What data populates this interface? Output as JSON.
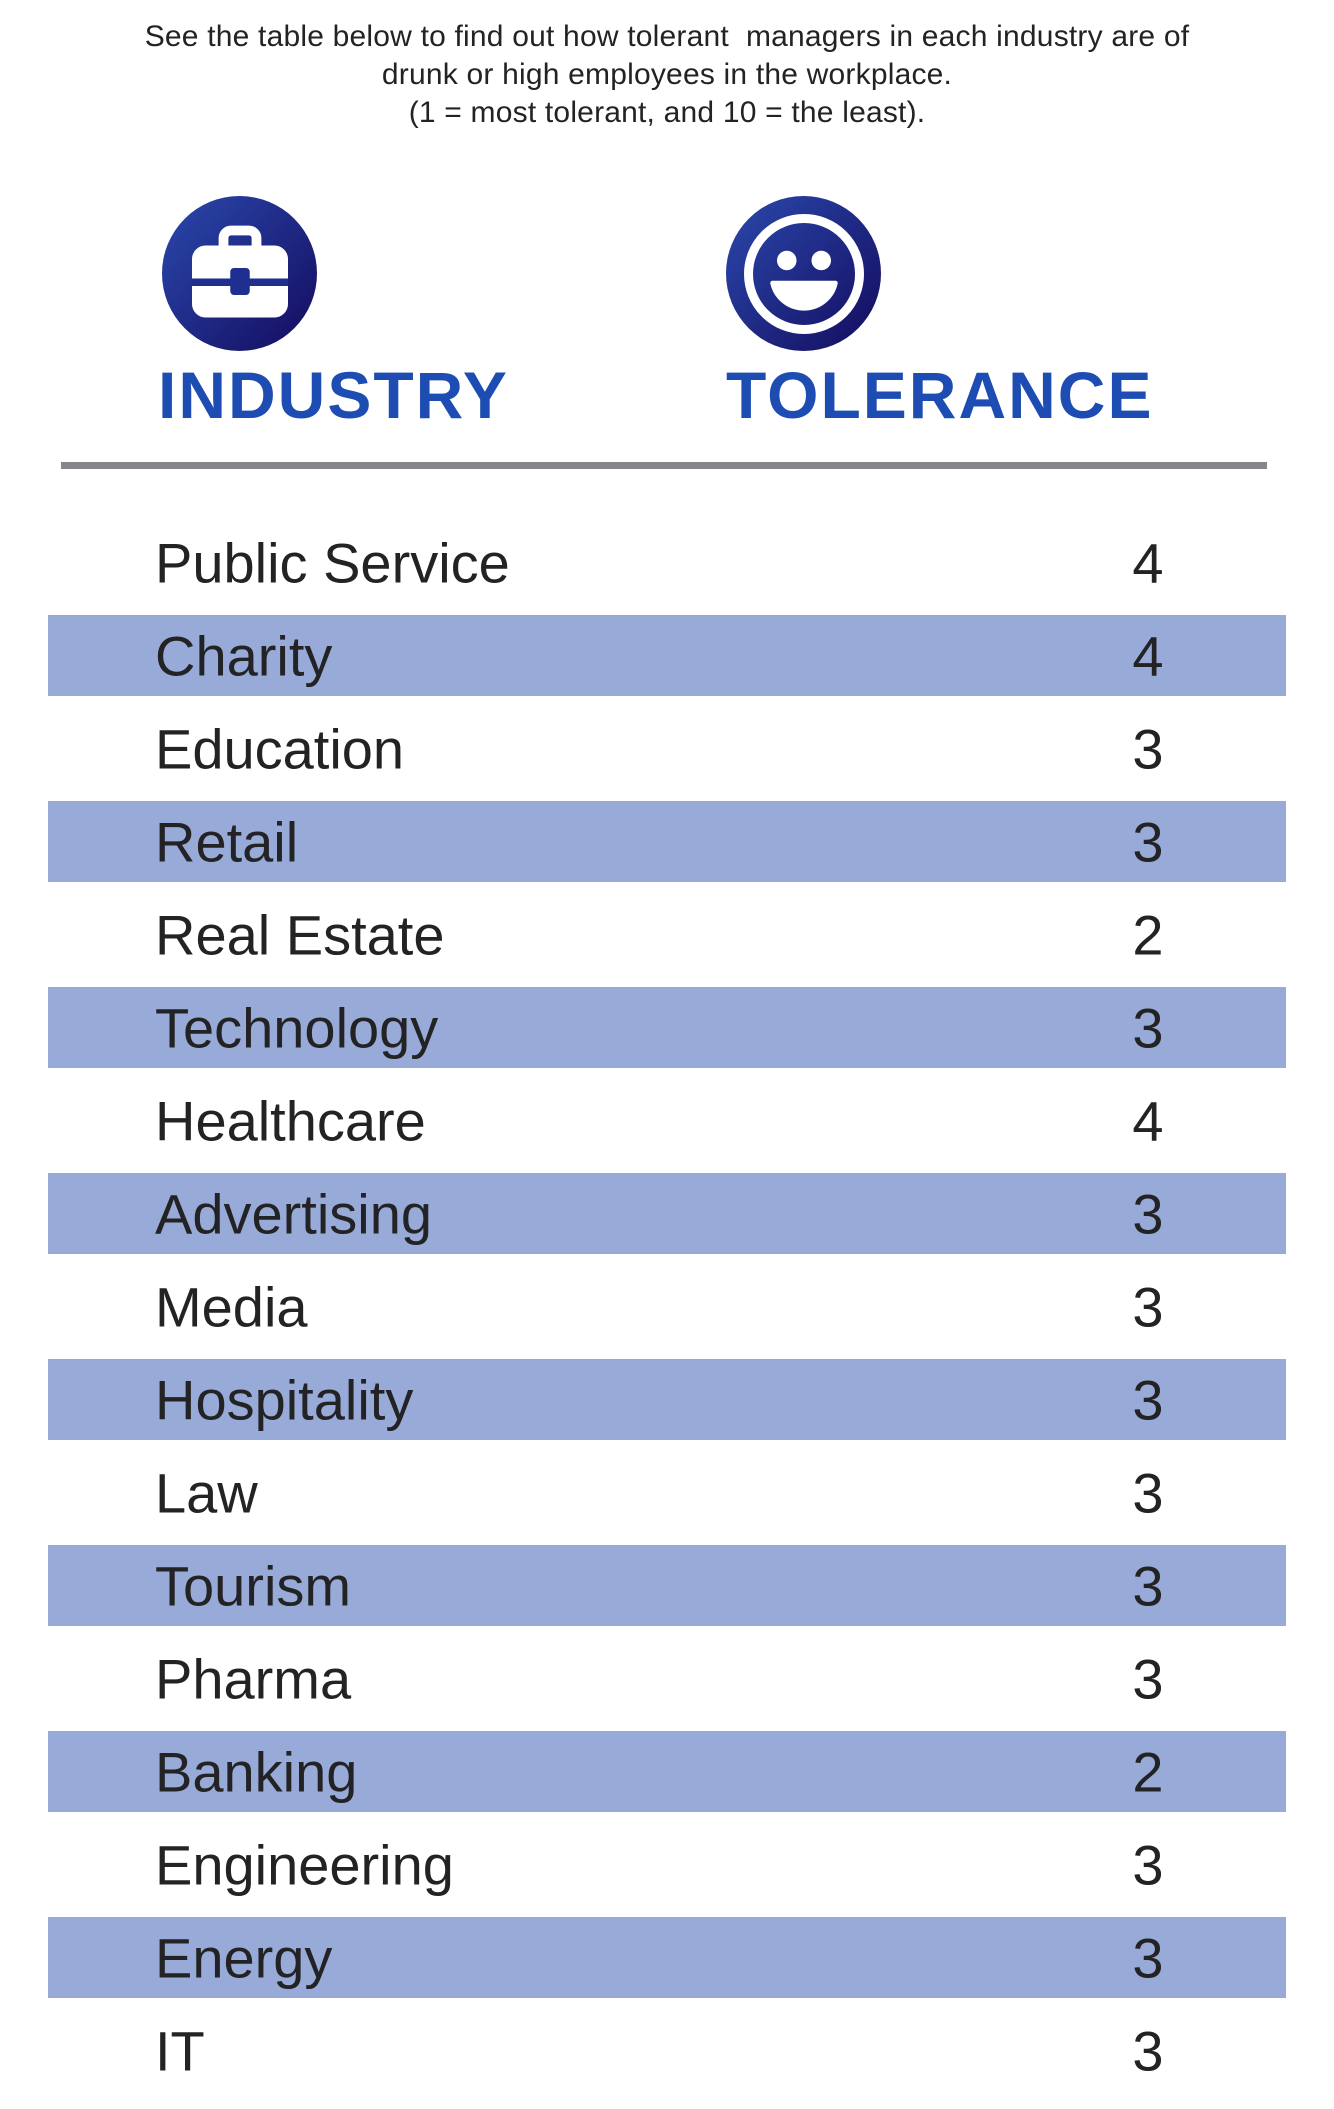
{
  "header": {
    "lines": [
      "See the table below to find out how tolerant  managers in each industry are of",
      "drunk or high employees in the workplace.",
      "(1 = most tolerant, and 10 = the least)."
    ]
  },
  "columns": {
    "industry": {
      "label": "INDUSTRY",
      "icon": "briefcase-icon"
    },
    "tolerance": {
      "label": "TOLERANCE",
      "icon": "smiley-face-icon"
    }
  },
  "chart_data": {
    "type": "table",
    "title": "See the table below to find out how tolerant managers in each industry are of drunk or high employees in the workplace. (1 = most tolerant, and 10 = the least).",
    "columns": [
      "INDUSTRY",
      "TOLERANCE"
    ],
    "scale_note": "1 = most tolerant, 10 = the least",
    "rows": [
      {
        "industry": "Public Service",
        "tolerance": 4
      },
      {
        "industry": "Charity",
        "tolerance": 4
      },
      {
        "industry": "Education",
        "tolerance": 3
      },
      {
        "industry": "Retail",
        "tolerance": 3
      },
      {
        "industry": "Real Estate",
        "tolerance": 2
      },
      {
        "industry": "Technology",
        "tolerance": 3
      },
      {
        "industry": "Healthcare",
        "tolerance": 4
      },
      {
        "industry": "Advertising",
        "tolerance": 3
      },
      {
        "industry": "Media",
        "tolerance": 3
      },
      {
        "industry": "Hospitality",
        "tolerance": 3
      },
      {
        "industry": "Law",
        "tolerance": 3
      },
      {
        "industry": "Tourism",
        "tolerance": 3
      },
      {
        "industry": "Pharma",
        "tolerance": 3
      },
      {
        "industry": "Banking",
        "tolerance": 2
      },
      {
        "industry": "Engineering",
        "tolerance": 3
      },
      {
        "industry": "Energy",
        "tolerance": 3
      },
      {
        "industry": "IT",
        "tolerance": 3
      }
    ]
  },
  "colors": {
    "accent_blue": "#1d4db2",
    "stripe_blue": "#98abd8",
    "icon_grad_start": "#2b49ad",
    "icon_grad_end": "#151064",
    "divider_gray": "#86868a",
    "text_dark": "#232325"
  }
}
